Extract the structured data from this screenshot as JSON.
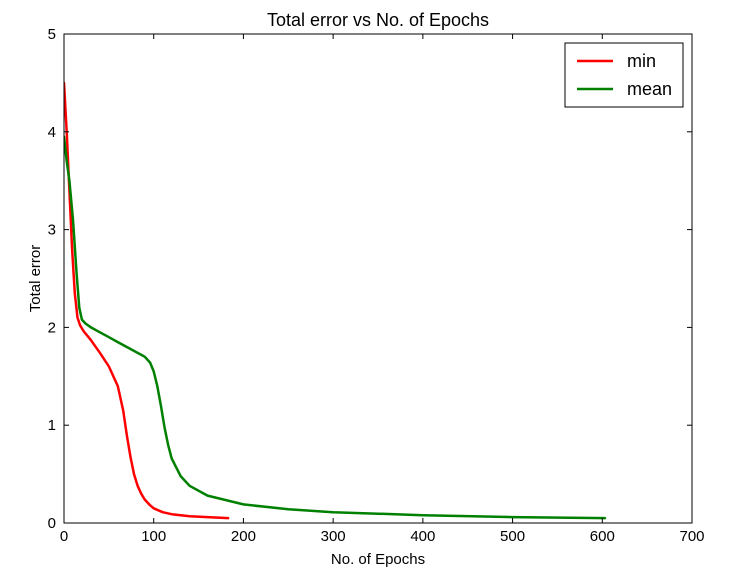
{
  "chart_data": {
    "type": "line",
    "title": "Total error vs No. of Epochs",
    "xlabel": "No. of Epochs",
    "ylabel": "Total error",
    "xlim": [
      0,
      700
    ],
    "ylim": [
      0,
      5
    ],
    "xticks": [
      "0",
      "100",
      "200",
      "300",
      "400",
      "500",
      "600",
      "700"
    ],
    "yticks": [
      "0",
      "1",
      "2",
      "3",
      "4",
      "5"
    ],
    "grid": false,
    "legend_position": "top-right",
    "series": [
      {
        "name": "min",
        "color": "#ff0000",
        "x": [
          0,
          3,
          6,
          9,
          12,
          15,
          18,
          22,
          30,
          40,
          50,
          60,
          66,
          70,
          74,
          78,
          82,
          86,
          90,
          95,
          100,
          110,
          120,
          140,
          160,
          183
        ],
        "y": [
          4.5,
          4.0,
          3.4,
          2.8,
          2.35,
          2.1,
          2.02,
          1.96,
          1.87,
          1.74,
          1.6,
          1.4,
          1.15,
          0.9,
          0.68,
          0.5,
          0.38,
          0.3,
          0.24,
          0.19,
          0.15,
          0.11,
          0.09,
          0.07,
          0.06,
          0.05
        ]
      },
      {
        "name": "mean",
        "color": "#008000",
        "x": [
          0,
          3,
          6,
          10,
          14,
          17,
          20,
          24,
          30,
          40,
          50,
          60,
          70,
          80,
          90,
          96,
          100,
          104,
          108,
          112,
          116,
          120,
          130,
          140,
          160,
          200,
          250,
          300,
          400,
          500,
          603
        ],
        "y": [
          3.95,
          3.7,
          3.5,
          3.1,
          2.55,
          2.2,
          2.08,
          2.04,
          2.0,
          1.95,
          1.9,
          1.85,
          1.8,
          1.75,
          1.7,
          1.64,
          1.55,
          1.4,
          1.2,
          0.98,
          0.8,
          0.66,
          0.48,
          0.38,
          0.28,
          0.19,
          0.14,
          0.11,
          0.08,
          0.06,
          0.05
        ]
      }
    ]
  }
}
